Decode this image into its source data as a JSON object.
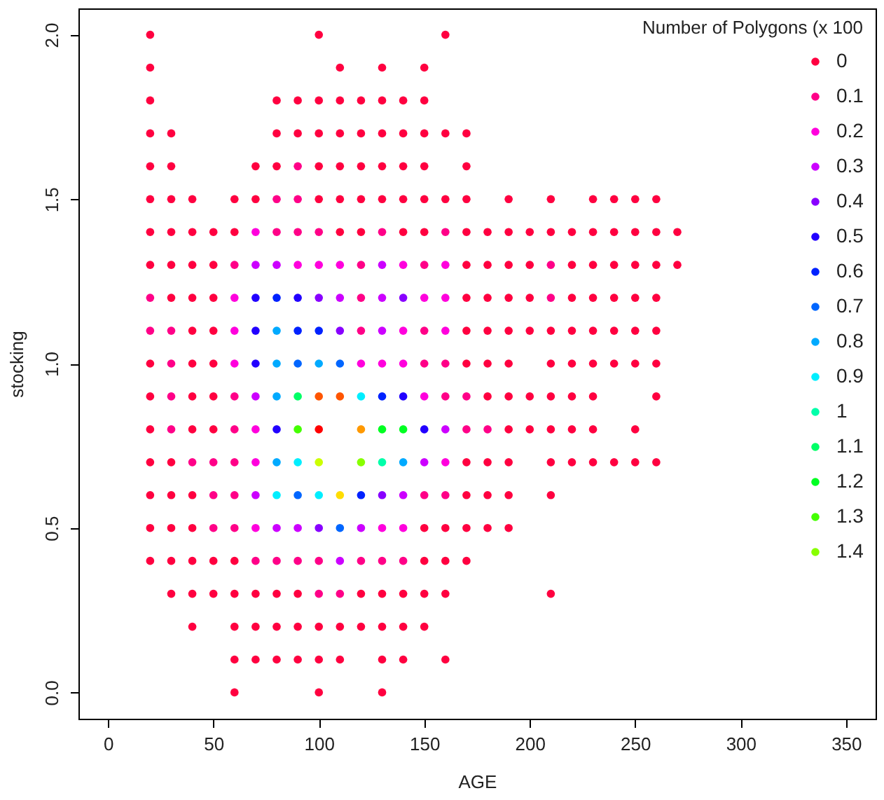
{
  "chart_data": {
    "type": "scatter",
    "xlabel": "AGE",
    "ylabel": "stocking",
    "legend_title": "Number of Polygons (x 100",
    "legend": "top right",
    "marker": "circle",
    "xlim": [
      -14,
      364
    ],
    "ylim": [
      -0.08,
      2.08
    ],
    "xticks": [
      0,
      50,
      100,
      150,
      200,
      250,
      300,
      350
    ],
    "yticks": [
      {
        "value": 0,
        "label": "0.0"
      },
      {
        "value": 0.5,
        "label": "0.5"
      },
      {
        "value": 1,
        "label": "1.0"
      },
      {
        "value": 1.5,
        "label": "1.5"
      },
      {
        "value": 2,
        "label": "2.0"
      }
    ],
    "series": [
      {
        "name": "0",
        "color": "#ff0040",
        "x": [
          20,
          100,
          160,
          20,
          110,
          130,
          150,
          20,
          80,
          90,
          100,
          110,
          120,
          130,
          140,
          150,
          20,
          30,
          80,
          90,
          100,
          110,
          120,
          130,
          140,
          150,
          160,
          170,
          20,
          30,
          70,
          80,
          100,
          110,
          120,
          130,
          140,
          150,
          170,
          20,
          30,
          40,
          60,
          70,
          100,
          110,
          120,
          130,
          140,
          150,
          160,
          170,
          190,
          210,
          230,
          240,
          250,
          260,
          20,
          30,
          40,
          50,
          60,
          110,
          120,
          140,
          150,
          170,
          180,
          190,
          200,
          210,
          220,
          230,
          240,
          250,
          260,
          270,
          20,
          30,
          40,
          50,
          170,
          180,
          190,
          200,
          220,
          230,
          240,
          250,
          260,
          270,
          30,
          40,
          50,
          170,
          180,
          190,
          200,
          220,
          230,
          240,
          250,
          260,
          40,
          50,
          170,
          180,
          190,
          200,
          210,
          220,
          230,
          240,
          250,
          260,
          20,
          40,
          50,
          170,
          180,
          190,
          210,
          220,
          230,
          240,
          250,
          260,
          20,
          40,
          50,
          180,
          190,
          200,
          210,
          220,
          230,
          260,
          20,
          40,
          50,
          190,
          200,
          210,
          220,
          230,
          250,
          20,
          30,
          170,
          180,
          190,
          210,
          220,
          230,
          240,
          250,
          260,
          20,
          30,
          40,
          170,
          180,
          190,
          210,
          20,
          30,
          40,
          150,
          160,
          170,
          180,
          190,
          20,
          30,
          40,
          50,
          60,
          150,
          160,
          170,
          30,
          40,
          50,
          60,
          70,
          80,
          90,
          120,
          130,
          140,
          150,
          160,
          210,
          40,
          60,
          70,
          80,
          90,
          100,
          110,
          120,
          130,
          140,
          150,
          60,
          70,
          80,
          90,
          100,
          110,
          130,
          140,
          160,
          60,
          100,
          130
        ],
        "values": [
          2,
          2,
          2,
          1.9,
          1.9,
          1.9,
          1.9,
          1.8,
          1.8,
          1.8,
          1.8,
          1.8,
          1.8,
          1.8,
          1.8,
          1.8,
          1.7,
          1.7,
          1.7,
          1.7,
          1.7,
          1.7,
          1.7,
          1.7,
          1.7,
          1.7,
          1.7,
          1.7,
          1.6,
          1.6,
          1.6,
          1.6,
          1.6,
          1.6,
          1.6,
          1.6,
          1.6,
          1.6,
          1.6,
          1.5,
          1.5,
          1.5,
          1.5,
          1.5,
          1.5,
          1.5,
          1.5,
          1.5,
          1.5,
          1.5,
          1.5,
          1.5,
          1.5,
          1.5,
          1.5,
          1.5,
          1.5,
          1.5,
          1.4,
          1.4,
          1.4,
          1.4,
          1.4,
          1.4,
          1.4,
          1.4,
          1.4,
          1.4,
          1.4,
          1.4,
          1.4,
          1.4,
          1.4,
          1.4,
          1.4,
          1.4,
          1.4,
          1.4,
          1.3,
          1.3,
          1.3,
          1.3,
          1.3,
          1.3,
          1.3,
          1.3,
          1.3,
          1.3,
          1.3,
          1.3,
          1.3,
          1.3,
          1.2,
          1.2,
          1.2,
          1.2,
          1.2,
          1.2,
          1.2,
          1.2,
          1.2,
          1.2,
          1.2,
          1.2,
          1.1,
          1.1,
          1.1,
          1.1,
          1.1,
          1.1,
          1.1,
          1.1,
          1.1,
          1.1,
          1.1,
          1.1,
          1,
          1,
          1,
          1,
          1,
          1,
          1,
          1,
          1,
          1,
          1,
          1,
          0.9,
          0.9,
          0.9,
          0.9,
          0.9,
          0.9,
          0.9,
          0.9,
          0.9,
          0.9,
          0.8,
          0.8,
          0.8,
          0.8,
          0.8,
          0.8,
          0.8,
          0.8,
          0.8,
          0.7,
          0.7,
          0.7,
          0.7,
          0.7,
          0.7,
          0.7,
          0.7,
          0.7,
          0.7,
          0.7,
          0.6,
          0.6,
          0.6,
          0.6,
          0.6,
          0.6,
          0.6,
          0.5,
          0.5,
          0.5,
          0.5,
          0.5,
          0.5,
          0.5,
          0.5,
          0.4,
          0.4,
          0.4,
          0.4,
          0.4,
          0.4,
          0.4,
          0.4,
          0.3,
          0.3,
          0.3,
          0.3,
          0.3,
          0.3,
          0.3,
          0.3,
          0.3,
          0.3,
          0.3,
          0.3,
          0.3,
          0.2,
          0.2,
          0.2,
          0.2,
          0.2,
          0.2,
          0.2,
          0.2,
          0.2,
          0.2,
          0.2,
          0.1,
          0.1,
          0.1,
          0.1,
          0.1,
          0.1,
          0.1,
          0.1,
          0.1,
          0,
          0,
          0
        ]
      },
      {
        "name": "0.1",
        "color": "#ff0088",
        "x": [
          90,
          80,
          90,
          80,
          90,
          100,
          130,
          160,
          60,
          120,
          150,
          210,
          20,
          120,
          210,
          20,
          30,
          120,
          150,
          30,
          150,
          160,
          30,
          60,
          160,
          170,
          30,
          60,
          170,
          180,
          40,
          50,
          60,
          50,
          60,
          150,
          160,
          50,
          60,
          70,
          80,
          90,
          100,
          120,
          130,
          140,
          100,
          110
        ],
        "values": [
          1.6,
          1.5,
          1.5,
          1.4,
          1.4,
          1.4,
          1.4,
          1.4,
          1.3,
          1.3,
          1.3,
          1.3,
          1.2,
          1.2,
          1.2,
          1.1,
          1.1,
          1.1,
          1.1,
          1,
          1,
          1,
          0.9,
          0.9,
          0.9,
          0.9,
          0.8,
          0.8,
          0.8,
          0.8,
          0.7,
          0.7,
          0.7,
          0.6,
          0.6,
          0.6,
          0.6,
          0.5,
          0.5,
          0.4,
          0.4,
          0.4,
          0.4,
          0.4,
          0.4,
          0.4,
          0.3,
          0.3
        ]
      },
      {
        "name": "0.2",
        "color": "#ff00dd",
        "x": [
          70,
          90,
          100,
          110,
          140,
          160,
          60,
          150,
          160,
          60,
          140,
          160,
          60,
          120,
          130,
          140,
          150,
          70,
          70,
          160,
          70,
          130,
          140
        ],
        "values": [
          1.4,
          1.3,
          1.3,
          1.3,
          1.3,
          1.3,
          1.2,
          1.2,
          1.2,
          1.1,
          1.1,
          1.1,
          1,
          1,
          1,
          1,
          0.9,
          0.8,
          0.7,
          0.7,
          0.5,
          0.5,
          0.5
        ]
      },
      {
        "name": "0.3",
        "color": "#cc00ff",
        "x": [
          70,
          80,
          130,
          110,
          130,
          130,
          70,
          160,
          150,
          70,
          140,
          80,
          90,
          120,
          110
        ],
        "values": [
          1.3,
          1.3,
          1.3,
          1.2,
          1.2,
          1.1,
          0.9,
          0.8,
          0.7,
          0.6,
          0.6,
          0.5,
          0.5,
          0.5,
          0.4
        ]
      },
      {
        "name": "0.4",
        "color": "#8800ff",
        "x": [
          100,
          140,
          110,
          130,
          100
        ],
        "values": [
          1.2,
          1.2,
          1.1,
          0.6,
          0.5
        ]
      },
      {
        "name": "0.5",
        "color": "#2200ff",
        "x": [
          70,
          90,
          70,
          70,
          140,
          80,
          150
        ],
        "values": [
          1.2,
          1.2,
          1.1,
          1,
          0.9,
          0.8,
          0.8
        ]
      },
      {
        "name": "0.6",
        "color": "#0022ff",
        "x": [
          80,
          90,
          100,
          130,
          120
        ],
        "values": [
          1.2,
          1.1,
          1.1,
          0.9,
          0.6
        ]
      },
      {
        "name": "0.7",
        "color": "#0066ff",
        "x": [
          90,
          110,
          90,
          110
        ],
        "values": [
          1,
          1,
          0.6,
          0.5
        ]
      },
      {
        "name": "0.8",
        "color": "#00aaff",
        "x": [
          80,
          80,
          100,
          80,
          80,
          140
        ],
        "values": [
          1.1,
          1,
          1,
          0.9,
          0.7,
          0.7
        ]
      },
      {
        "name": "0.9",
        "color": "#00eeff",
        "x": [
          120,
          90,
          80,
          100
        ],
        "values": [
          0.9,
          0.7,
          0.6,
          0.6
        ]
      },
      {
        "name": "1",
        "color": "#00ffaa",
        "x": [
          130
        ],
        "values": [
          0.7
        ]
      },
      {
        "name": "1.1",
        "color": "#00ff66",
        "x": [
          90
        ],
        "values": [
          0.9
        ]
      },
      {
        "name": "1.2",
        "color": "#00ff22",
        "x": [
          130,
          140
        ],
        "values": [
          0.8,
          0.8
        ]
      },
      {
        "name": "1.3",
        "color": "#44ff00",
        "x": [
          90
        ],
        "values": [
          0.8
        ]
      },
      {
        "name": "1.4",
        "color": "#88ff00",
        "x": [
          120
        ],
        "values": [
          0.7
        ]
      },
      {
        "color": "#ccff00",
        "x": [
          100
        ],
        "values": [
          0.7
        ]
      },
      {
        "color": "#ffdd00",
        "x": [
          110
        ],
        "values": [
          0.6
        ]
      },
      {
        "color": "#ff9900",
        "x": [
          120
        ],
        "values": [
          0.8
        ]
      },
      {
        "color": "#ff5500",
        "x": [
          100,
          110
        ],
        "values": [
          0.9,
          0.9
        ]
      },
      {
        "color": "#ff0000",
        "x": [
          100
        ],
        "values": [
          0.8
        ]
      }
    ]
  }
}
